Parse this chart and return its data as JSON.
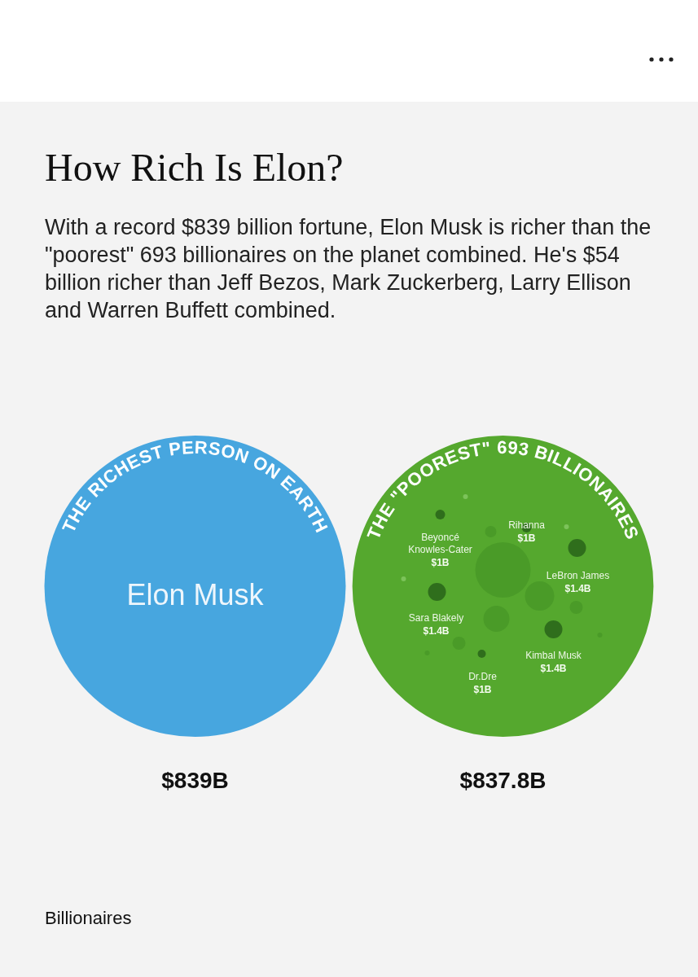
{
  "chart_data": {
    "type": "other",
    "title": "How Rich Is Elon?",
    "subtitle": "With a record $839 billion fortune, Elon Musk is richer than the \"poorest\" 693 billionaires on the planet combined. He's $54 billion richer than Jeff Bezos, Mark Zuckerberg, Larry Ellison and Warren Buffett combined.",
    "categories": [
      "THE RICHEST PERSON ON EARTH",
      "THE \"POOREST\" 693 BILLIONAIRES"
    ],
    "values": [
      839,
      837.8
    ],
    "value_labels": [
      "$839B",
      "$837.8B"
    ],
    "colors": [
      "#47a6df",
      "#55a82e"
    ],
    "annotations": [
      "Elon Musk",
      "Beyoncé\nKnowles-Cater\n$1B",
      "Rihanna\n$1B",
      "LeBron James\n$1.4B",
      "Sara Blakely\n$1.4B",
      "Kimbal Musk\n$1.4B",
      "Dr.Dre\n$1B",
      "Billionaires"
    ]
  }
}
